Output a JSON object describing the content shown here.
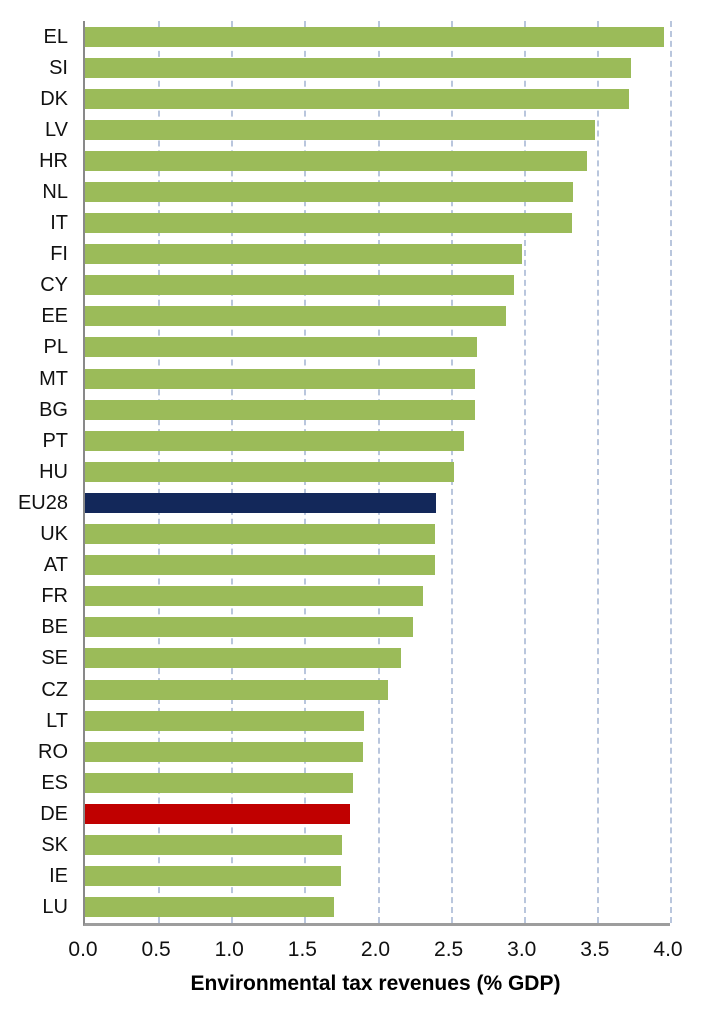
{
  "chart_data": {
    "type": "bar",
    "orientation": "horizontal",
    "xlabel": "Environmental tax revenues (% GDP)",
    "categories": [
      "EL",
      "SI",
      "DK",
      "LV",
      "HR",
      "NL",
      "IT",
      "FI",
      "CY",
      "EE",
      "PL",
      "MT",
      "BG",
      "PT",
      "HU",
      "EU28",
      "UK",
      "AT",
      "FR",
      "BE",
      "SE",
      "CZ",
      "LT",
      "RO",
      "ES",
      "DE",
      "SK",
      "IE",
      "LU"
    ],
    "values": [
      3.96,
      3.73,
      3.72,
      3.49,
      3.43,
      3.34,
      3.33,
      2.99,
      2.93,
      2.88,
      2.68,
      2.67,
      2.67,
      2.59,
      2.52,
      2.4,
      2.39,
      2.39,
      2.31,
      2.24,
      2.16,
      2.07,
      1.91,
      1.9,
      1.83,
      1.81,
      1.76,
      1.75,
      1.7
    ],
    "xlim": [
      0.0,
      4.0
    ],
    "x_ticks": [
      0.0,
      0.5,
      1.0,
      1.5,
      2.0,
      2.5,
      3.0,
      3.5,
      4.0
    ],
    "x_tick_labels": [
      "0.0",
      "0.5",
      "1.0",
      "1.5",
      "2.0",
      "2.5",
      "3.0",
      "3.5",
      "4.0"
    ],
    "grid": "vertical-dashed",
    "legend": "none",
    "colors": {
      "bar_default": "#9bbb59",
      "bar_highlight_eu28": "#13285a",
      "bar_highlight_de": "#c00000",
      "gridline": "#b9c6dd",
      "axis_line": "#9d9d9d"
    },
    "highlighted": {
      "EU28": "#13285a",
      "DE": "#c00000"
    }
  }
}
